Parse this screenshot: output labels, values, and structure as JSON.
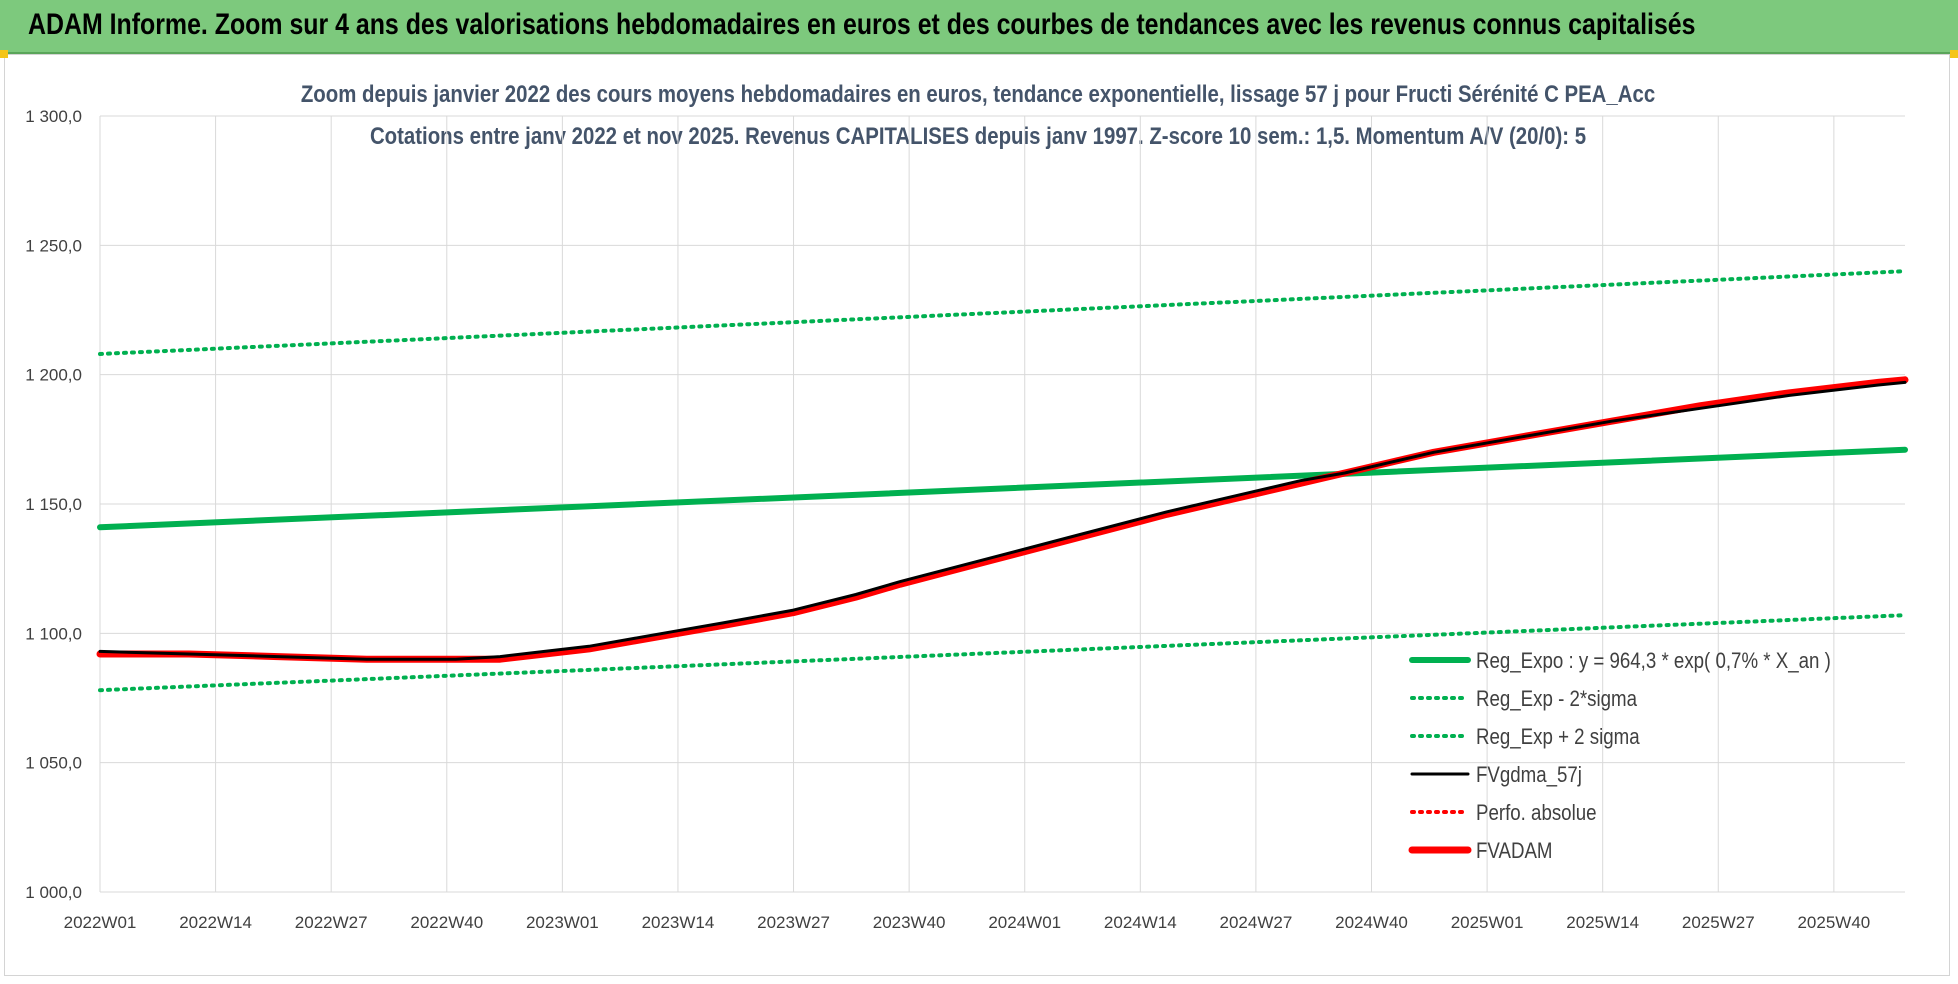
{
  "banner": {
    "title": "ADAM Informe. Zoom sur 4 ans des valorisations hebdomadaires en euros et des courbes de tendances avec les revenus connus capitalisés"
  },
  "colors": {
    "banner_bg": "#7dc97d",
    "green": "#00b050",
    "black": "#000000",
    "red": "#ff0000",
    "grid": "#d9d9d9"
  },
  "chart_data": {
    "type": "line",
    "title_lines": [
      "Zoom depuis janvier 2022 des cours moyens hebdomadaires en euros, tendance exponentielle, lissage 57 j pour Fructi Sérénité C PEA_Acc",
      "Cotations entre janv 2022 et nov 2025. Revenus CAPITALISES depuis janv 1997. Z-score 10 sem.: 1,5. Momentum A/V (20/0): 5"
    ],
    "x_tick_labels": [
      "2022W01",
      "2022W14",
      "2022W27",
      "2022W40",
      "2023W01",
      "2023W14",
      "2023W27",
      "2023W40",
      "2024W01",
      "2024W14",
      "2024W27",
      "2024W40",
      "2025W01",
      "2025W14",
      "2025W27",
      "2025W40"
    ],
    "x_week_index": [
      0,
      13,
      26,
      39,
      52,
      65,
      78,
      91,
      104,
      117,
      130,
      143,
      156,
      169,
      182,
      195
    ],
    "x_range": [
      0,
      203
    ],
    "ylim": [
      1000,
      1300
    ],
    "y_ticks": [
      1000,
      1050,
      1100,
      1150,
      1200,
      1250,
      1300
    ],
    "y_tick_labels": [
      "1 000,0",
      "1 050,0",
      "1 100,0",
      "1 150,0",
      "1 200,0",
      "1 250,0",
      "1 300,0"
    ],
    "legend_position": "bottom-right",
    "series": [
      {
        "name": "Reg_Expo : y = 964,3 * exp( 0,7% *  X_an )",
        "style": "solid-thick",
        "color": "#00b050",
        "x": [
          0,
          203
        ],
        "y": [
          1141,
          1171
        ]
      },
      {
        "name": "Reg_Exp - 2*sigma",
        "style": "dotted",
        "color": "#00b050",
        "x": [
          0,
          203
        ],
        "y": [
          1078,
          1107
        ]
      },
      {
        "name": "Reg_Exp + 2 sigma",
        "style": "dotted",
        "color": "#00b050",
        "x": [
          0,
          203
        ],
        "y": [
          1208,
          1240
        ]
      },
      {
        "name": "FVgdma_57j",
        "style": "solid",
        "color": "#000000",
        "x": [
          0,
          10,
          20,
          30,
          40,
          45,
          50,
          55,
          60,
          65,
          70,
          78,
          85,
          90,
          100,
          110,
          120,
          130,
          135,
          140,
          145,
          150,
          160,
          170,
          180,
          190,
          200,
          203
        ],
        "y": [
          1093,
          1092,
          1091,
          1090,
          1090,
          1091,
          1093,
          1095,
          1098,
          1101,
          1104,
          1109,
          1115,
          1120,
          1129,
          1138,
          1147,
          1155,
          1159,
          1162,
          1166,
          1170,
          1176,
          1182,
          1187,
          1192,
          1196,
          1197
        ]
      },
      {
        "name": "Perfo. absolue",
        "style": "dotted",
        "color": "#ff0000",
        "x": [],
        "y": []
      },
      {
        "name": "FVADAM",
        "style": "solid-thick",
        "color": "#ff0000",
        "x": [
          0,
          10,
          20,
          30,
          40,
          45,
          50,
          55,
          60,
          65,
          70,
          78,
          85,
          90,
          100,
          110,
          120,
          130,
          135,
          140,
          145,
          150,
          160,
          170,
          180,
          190,
          200,
          203
        ],
        "y": [
          1092,
          1092,
          1091,
          1090,
          1090,
          1090,
          1092,
          1094,
          1097,
          1100,
          1103,
          1108,
          1114,
          1119,
          1128,
          1137,
          1146,
          1154,
          1158,
          1162,
          1166,
          1170,
          1176,
          1182,
          1188,
          1193,
          1197,
          1198
        ]
      }
    ]
  }
}
